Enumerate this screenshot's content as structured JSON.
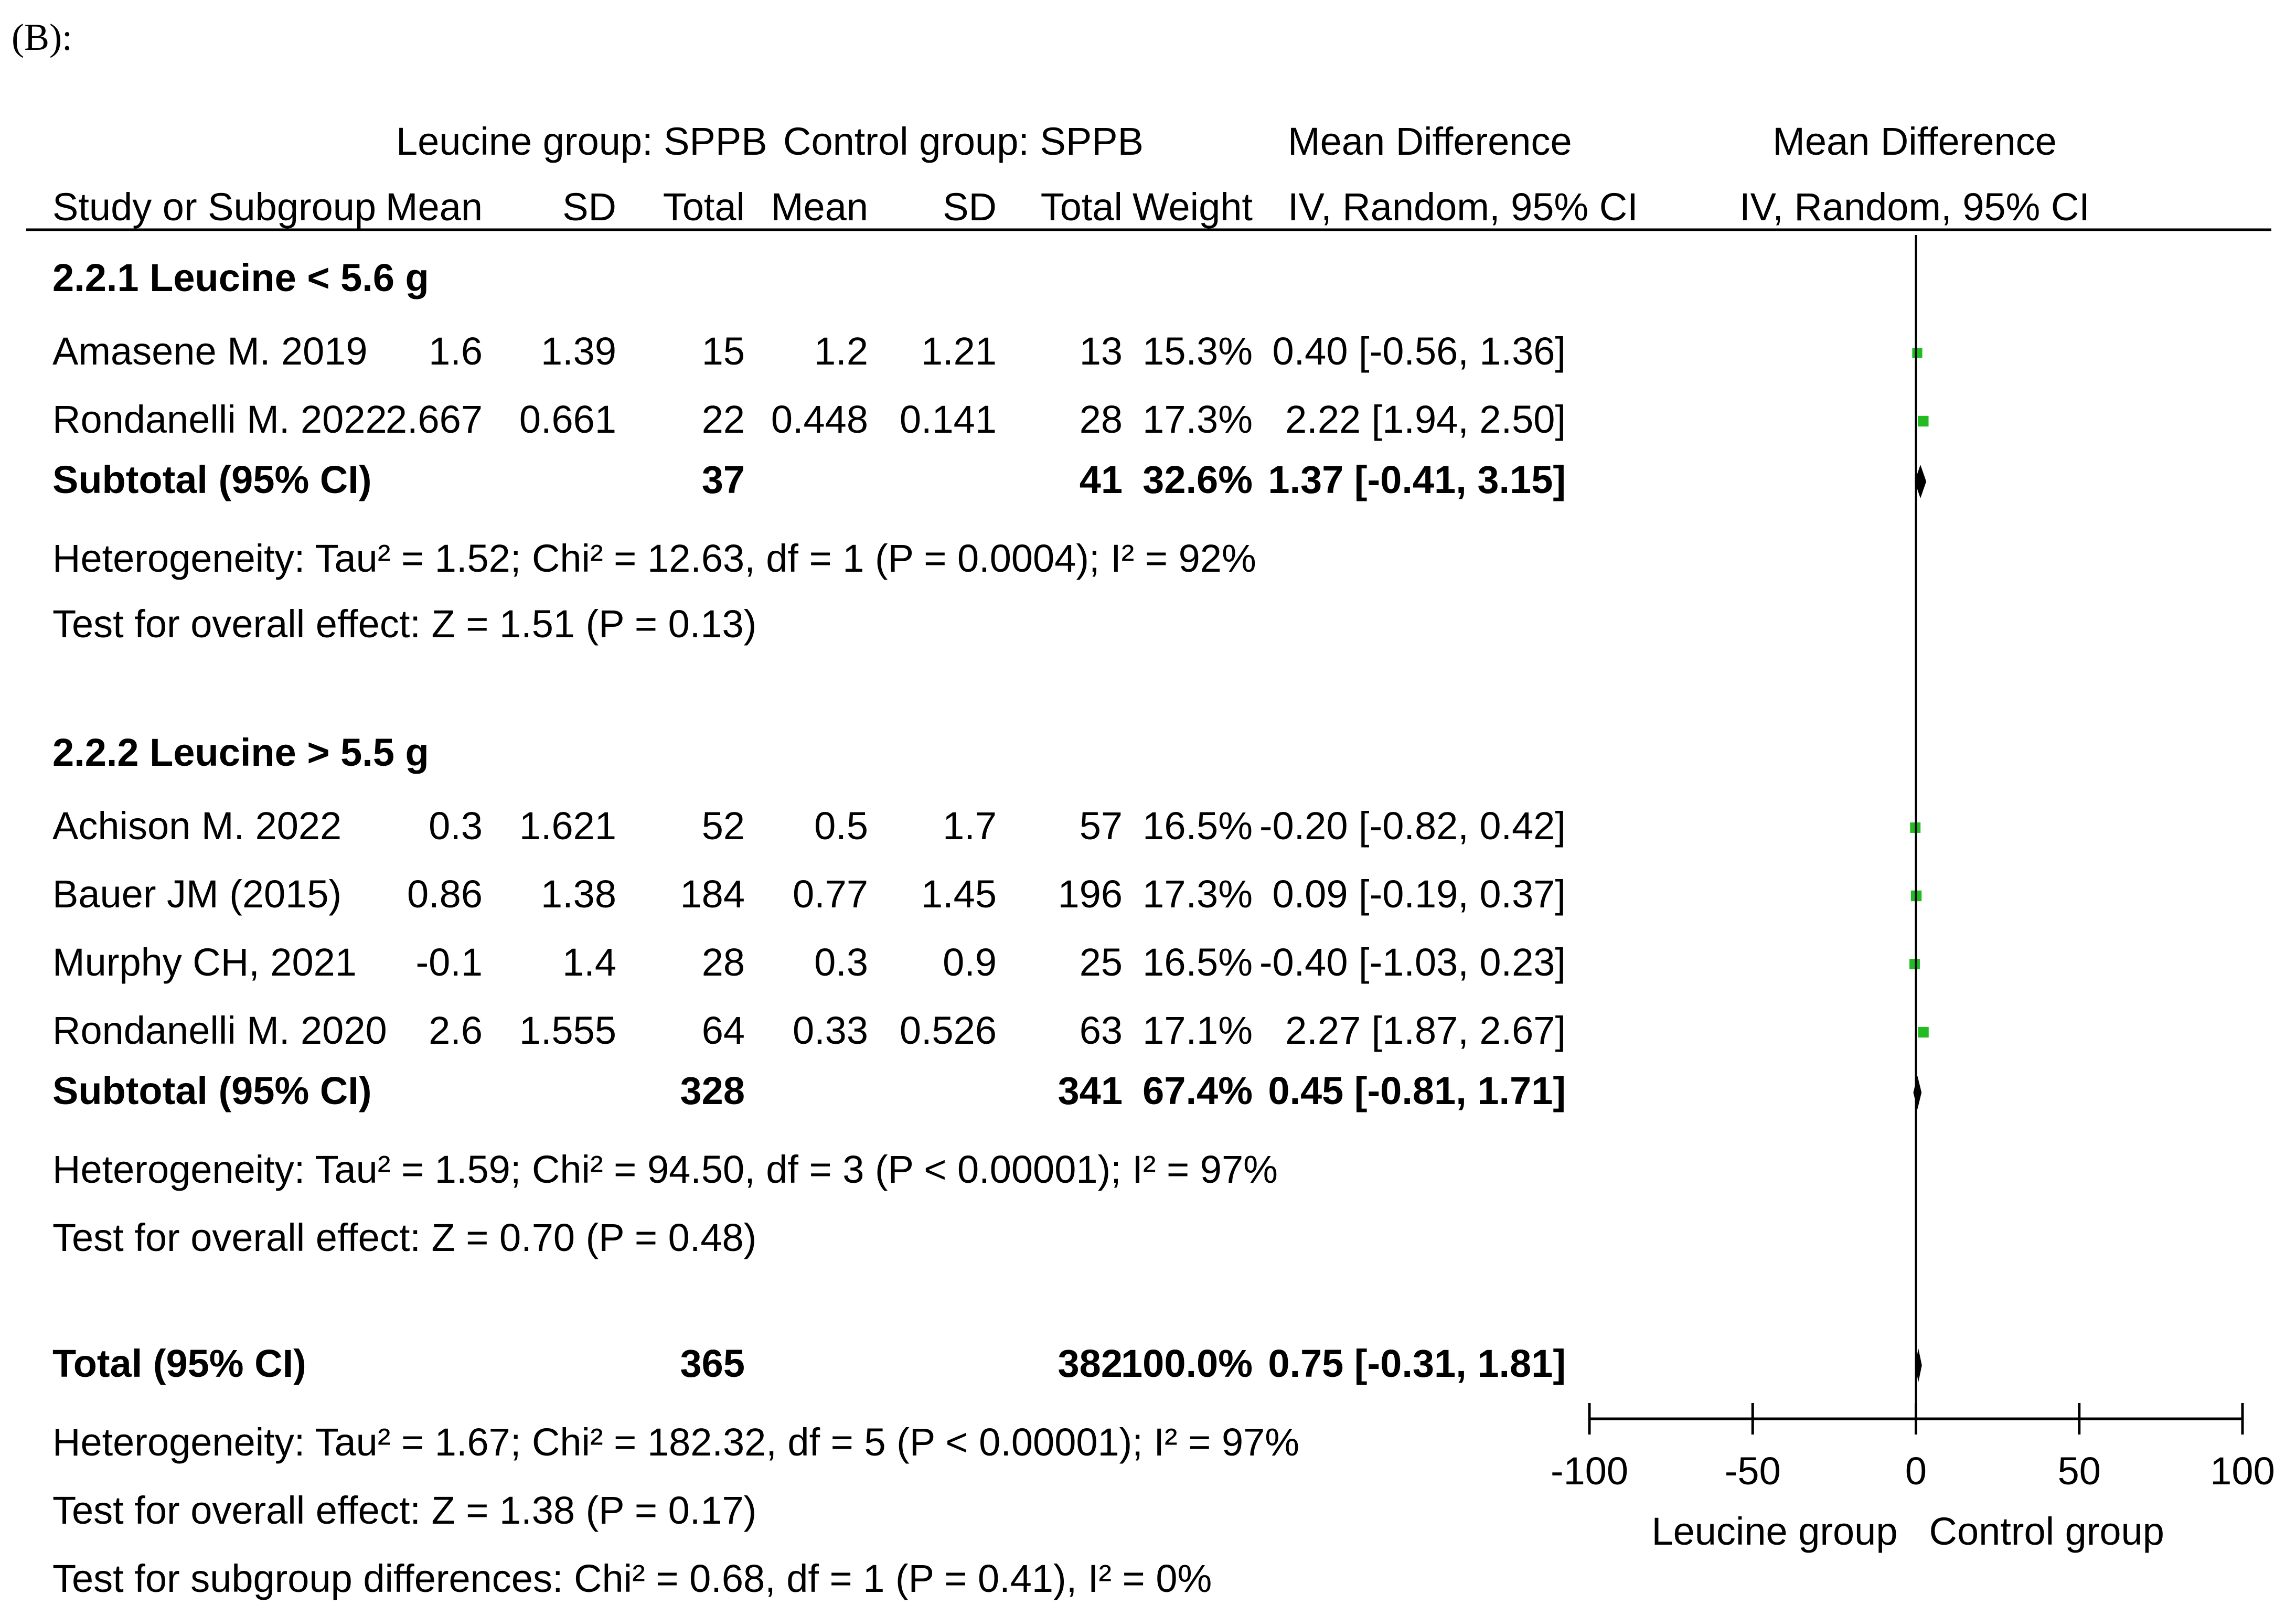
{
  "figure_label": "(B):",
  "headers": {
    "leucine_group": "Leucine group: SPPB",
    "control_group": "Control group: SPPB",
    "mean_difference": "Mean Difference",
    "plot_mean_difference": "Mean Difference",
    "study_or_subgroup": "Study or Subgroup",
    "mean1": "Mean",
    "sd1": "SD",
    "total1": "Total",
    "mean2": "Mean",
    "sd2": "SD",
    "total2": "Total",
    "weight": "Weight",
    "method": "IV, Random, 95% CI",
    "plot_method": "IV, Random, 95% CI"
  },
  "axis": {
    "ticks": [
      "-100",
      "-50",
      "0",
      "50",
      "100"
    ],
    "left_label": "Leucine group",
    "right_label": "Control group"
  },
  "chart_data": {
    "type": "forest",
    "xlim": [
      -100,
      100
    ],
    "x_ticks": [
      -100,
      -50,
      0,
      50,
      100
    ],
    "subgroups": [
      {
        "title": "2.2.1 Leucine < 5.6 g",
        "studies": [
          {
            "study": "Amasene M. 2019",
            "mean1": "1.6",
            "sd1": "1.39",
            "total1": "15",
            "mean2": "1.2",
            "sd2": "1.21",
            "total2": "13",
            "weight": "15.3%",
            "ci_text": "0.40 [-0.56, 1.36]",
            "md": 0.4,
            "lo": -0.56,
            "hi": 1.36,
            "w": 15.3
          },
          {
            "study": "Rondanelli M. 2022",
            "mean1": "2.667",
            "sd1": "0.661",
            "total1": "22",
            "mean2": "0.448",
            "sd2": "0.141",
            "total2": "28",
            "weight": "17.3%",
            "ci_text": "2.22 [1.94, 2.50]",
            "md": 2.22,
            "lo": 1.94,
            "hi": 2.5,
            "w": 17.3
          }
        ],
        "subtotal": {
          "label": "Subtotal (95% CI)",
          "total1": "37",
          "total2": "41",
          "weight": "32.6%",
          "ci_text": "1.37 [-0.41, 3.15]",
          "md": 1.37,
          "lo": -0.41,
          "hi": 3.15
        },
        "heterogeneity": "Heterogeneity: Tau² = 1.52; Chi² = 12.63, df = 1 (P = 0.0004); I² = 92%",
        "overall_effect": "Test for overall effect: Z = 1.51 (P = 0.13)"
      },
      {
        "title": "2.2.2 Leucine > 5.5 g",
        "studies": [
          {
            "study": "Achison M. 2022",
            "mean1": "0.3",
            "sd1": "1.621",
            "total1": "52",
            "mean2": "0.5",
            "sd2": "1.7",
            "total2": "57",
            "weight": "16.5%",
            "ci_text": "-0.20 [-0.82, 0.42]",
            "md": -0.2,
            "lo": -0.82,
            "hi": 0.42,
            "w": 16.5
          },
          {
            "study": "Bauer JM (2015)",
            "mean1": "0.86",
            "sd1": "1.38",
            "total1": "184",
            "mean2": "0.77",
            "sd2": "1.45",
            "total2": "196",
            "weight": "17.3%",
            "ci_text": "0.09 [-0.19, 0.37]",
            "md": 0.09,
            "lo": -0.19,
            "hi": 0.37,
            "w": 17.3
          },
          {
            "study": "Murphy CH, 2021",
            "mean1": "-0.1",
            "sd1": "1.4",
            "total1": "28",
            "mean2": "0.3",
            "sd2": "0.9",
            "total2": "25",
            "weight": "16.5%",
            "ci_text": "-0.40 [-1.03, 0.23]",
            "md": -0.4,
            "lo": -1.03,
            "hi": 0.23,
            "w": 16.5
          },
          {
            "study": "Rondanelli M. 2020",
            "mean1": "2.6",
            "sd1": "1.555",
            "total1": "64",
            "mean2": "0.33",
            "sd2": "0.526",
            "total2": "63",
            "weight": "17.1%",
            "ci_text": "2.27 [1.87, 2.67]",
            "md": 2.27,
            "lo": 1.87,
            "hi": 2.67,
            "w": 17.1
          }
        ],
        "subtotal": {
          "label": "Subtotal (95% CI)",
          "total1": "328",
          "total2": "341",
          "weight": "67.4%",
          "ci_text": "0.45 [-0.81, 1.71]",
          "md": 0.45,
          "lo": -0.81,
          "hi": 1.71
        },
        "heterogeneity": "Heterogeneity: Tau² = 1.59; Chi² = 94.50, df = 3 (P < 0.00001); I² = 97%",
        "overall_effect": "Test for overall effect: Z = 0.70 (P = 0.48)"
      }
    ],
    "total": {
      "label": "Total (95% CI)",
      "total1": "365",
      "total2": "382",
      "weight": "100.0%",
      "ci_text": "0.75 [-0.31, 1.81]",
      "md": 0.75,
      "lo": -0.31,
      "hi": 1.81
    },
    "total_heterogeneity": "Heterogeneity: Tau² = 1.67; Chi² = 182.32, df = 5 (P < 0.00001); I² = 97%",
    "total_overall_effect": "Test for overall effect: Z = 1.38 (P = 0.17)",
    "subgroup_differences": "Test for subgroup differences: Chi² = 0.68, df = 1 (P = 0.41), I² = 0%"
  },
  "colors": {
    "study_marker": "#22bb22",
    "text": "#000000",
    "line": "#000000"
  }
}
